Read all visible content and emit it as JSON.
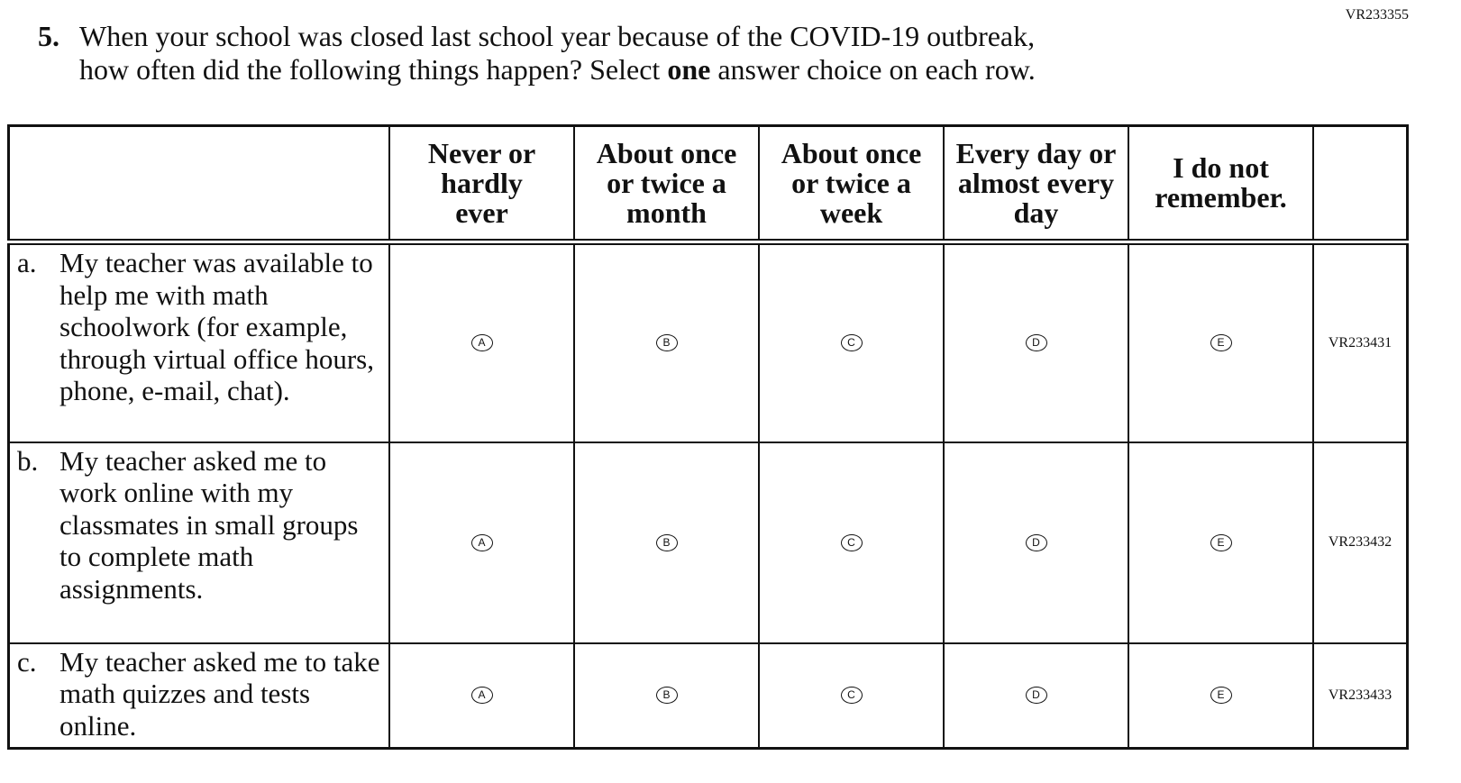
{
  "code": "VR233355",
  "question": {
    "number": "5.",
    "line1": "When your school was closed last school year because of the COVID-19 outbreak,",
    "line2_before": "how often did the following things happen? Select ",
    "emphasis": "one",
    "line2_after": " answer choice on each row."
  },
  "table": {
    "columns": [
      "Never or hardly ever",
      "About once or twice a month",
      "About once or twice a week",
      "Every day or almost every day",
      "I do not remember."
    ],
    "rows": [
      {
        "letter": "a.",
        "text": "My teacher was available to help me with math schoolwork (for example, through virtual office hours, phone, e-mail, chat).",
        "choices": [
          "A",
          "B",
          "C",
          "D",
          "E"
        ],
        "code": "VR233431"
      },
      {
        "letter": "b.",
        "text": "My teacher asked me to work online with my classmates in small groups to complete math assignments.",
        "choices": [
          "A",
          "B",
          "C",
          "D",
          "E"
        ],
        "code": "VR233432"
      },
      {
        "letter": "c.",
        "text": "My teacher asked me to take math quizzes and tests online.",
        "choices": [
          "A",
          "B",
          "C",
          "D",
          "E"
        ],
        "code": "VR233433"
      }
    ]
  }
}
